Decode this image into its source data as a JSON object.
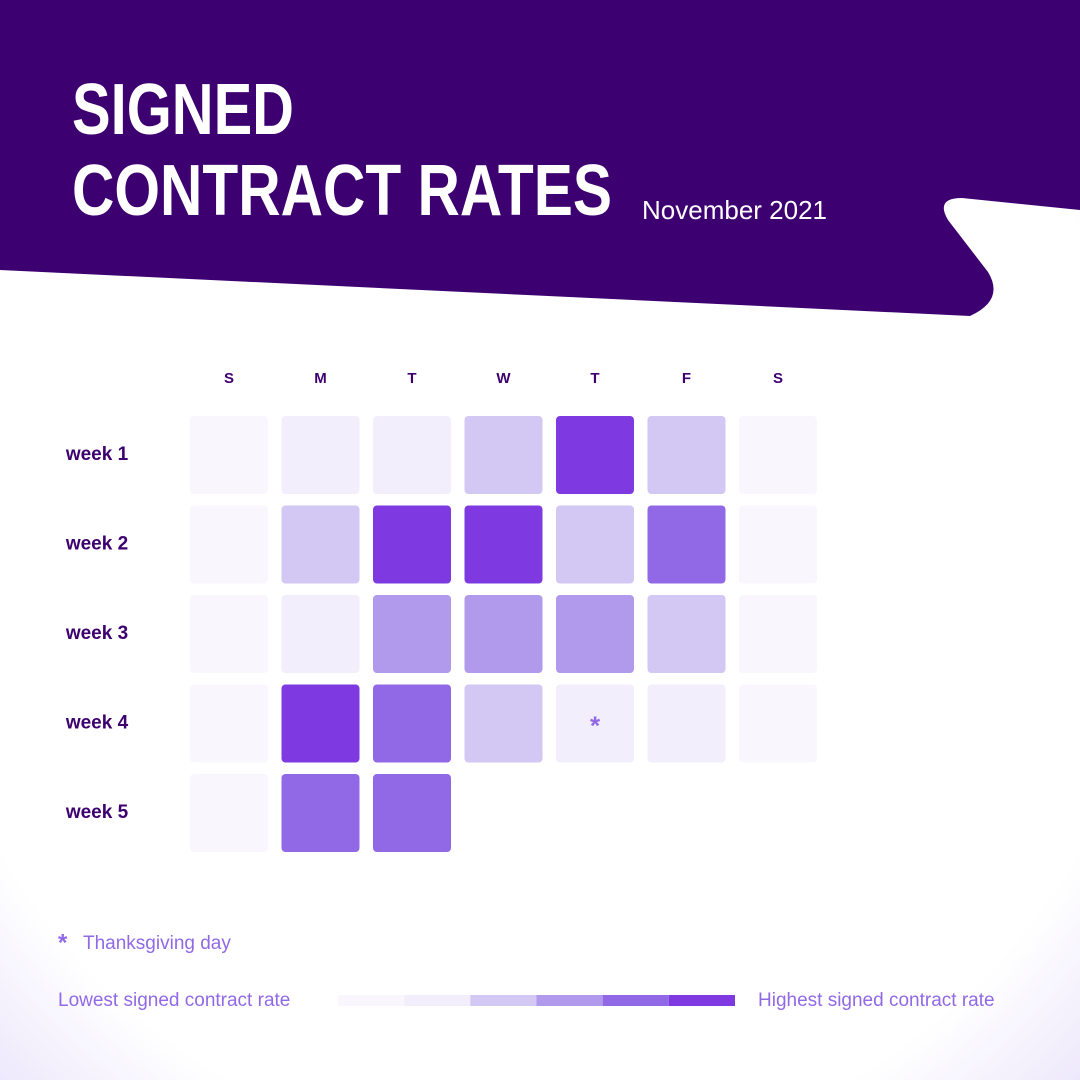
{
  "chart_data": {
    "type": "heatmap",
    "title": [
      "SIGNED",
      "CONTRACT RATES"
    ],
    "subtitle": "November 2021",
    "columns": [
      "S",
      "M",
      "T",
      "W",
      "T",
      "F",
      "S"
    ],
    "rows": [
      "week 1",
      "week 2",
      "week 3",
      "week 4",
      "week 5"
    ],
    "values": [
      [
        0,
        1,
        1,
        2,
        5,
        2,
        0
      ],
      [
        0,
        2,
        5,
        5,
        2,
        4,
        0
      ],
      [
        0,
        1,
        3,
        3,
        3,
        2,
        0
      ],
      [
        0,
        5,
        4,
        2,
        1,
        1,
        0
      ],
      [
        0,
        4,
        4,
        null,
        null,
        null,
        null
      ]
    ],
    "value_labels": [
      [
        null,
        null,
        null,
        null,
        null,
        null,
        null
      ],
      [
        null,
        null,
        null,
        null,
        null,
        null,
        null
      ],
      [
        null,
        null,
        null,
        null,
        null,
        null,
        null
      ],
      [
        null,
        null,
        null,
        null,
        "*",
        null,
        null
      ],
      [
        null,
        null,
        null,
        null,
        null,
        null,
        null
      ]
    ],
    "note": {
      "marker": "*",
      "text": "Thanksgiving day"
    },
    "scale": {
      "levels": [
        0,
        1,
        2,
        3,
        4,
        5
      ],
      "colors": [
        "#f9f7fd",
        "#f2eefc",
        "#d3c7f4",
        "#b19aec",
        "#9169e6",
        "#7e3ae0"
      ],
      "low_label": "Lowest signed contract rate",
      "high_label": "Highest signed contract rate"
    }
  }
}
